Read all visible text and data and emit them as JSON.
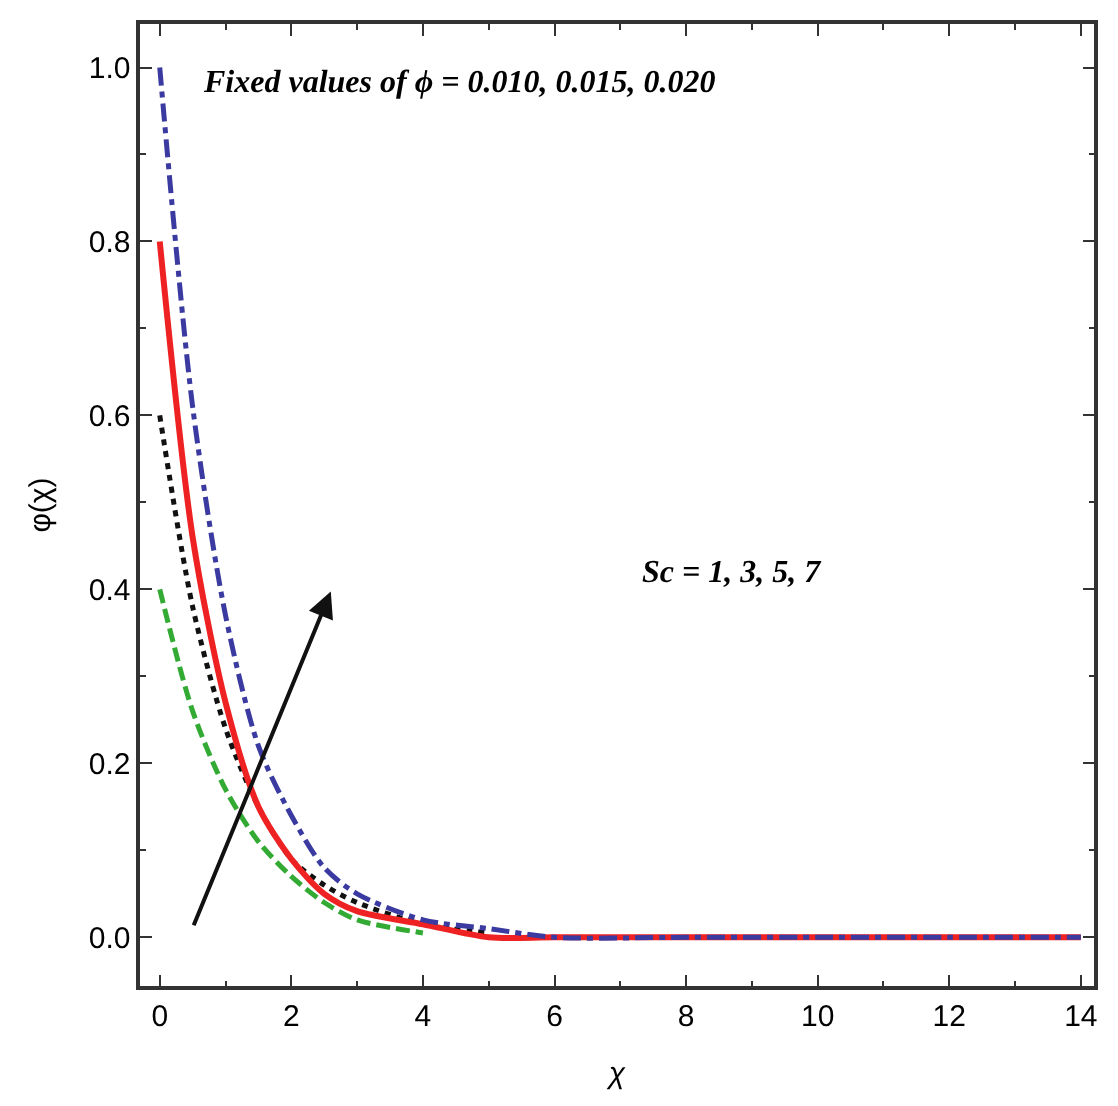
{
  "chart_data": {
    "type": "line",
    "xlabel": "χ",
    "ylabel": "φ(χ)",
    "annotations": [
      "Fixed values of ϕ = 0.010, 0.015, 0.020",
      "Sc = 1, 3, 5, 7"
    ],
    "x": [
      0,
      0.5,
      1,
      1.5,
      2,
      2.5,
      3,
      4,
      5,
      6,
      8,
      10,
      12,
      14
    ],
    "series": [
      {
        "color": "#3a3aa0",
        "line_style": "dashdot",
        "values": [
          1.0,
          0.61,
          0.37,
          0.22,
          0.14,
          0.08,
          0.05,
          0.02,
          0.01,
          0.0,
          0.0,
          0.0,
          0.0,
          0.0
        ]
      },
      {
        "color": "#ee2222",
        "line_style": "solid",
        "values": [
          0.8,
          0.46,
          0.27,
          0.15,
          0.09,
          0.05,
          0.03,
          0.015,
          0.0,
          0.0,
          0.0,
          0.0,
          0.0,
          0.0
        ]
      },
      {
        "color": "#111111",
        "line_style": "dotted",
        "values": [
          0.6,
          0.38,
          0.24,
          0.15,
          0.09,
          0.06,
          0.04,
          0.015,
          0.005,
          null,
          null,
          null,
          null,
          null
        ]
      },
      {
        "color": "#33aa33",
        "line_style": "dashed",
        "values": [
          0.4,
          0.26,
          0.17,
          0.11,
          0.07,
          0.04,
          0.02,
          0.005,
          null,
          null,
          null,
          null,
          null,
          null
        ]
      }
    ],
    "xlim": [
      -0.3,
      14.2
    ],
    "ylim": [
      -0.056,
      1.05
    ],
    "xticks": [
      0,
      2,
      4,
      6,
      8,
      10,
      12,
      14
    ],
    "yticks": [
      {
        "value": 0,
        "label": "0.0"
      },
      {
        "value": 0.2,
        "label": "0.2"
      },
      {
        "value": 0.4,
        "label": "0.4"
      },
      {
        "value": 0.6,
        "label": "0.6"
      },
      {
        "value": 0.8,
        "label": "0.8"
      },
      {
        "value": 1.0,
        "label": "1.0"
      }
    ],
    "marker": "none"
  }
}
